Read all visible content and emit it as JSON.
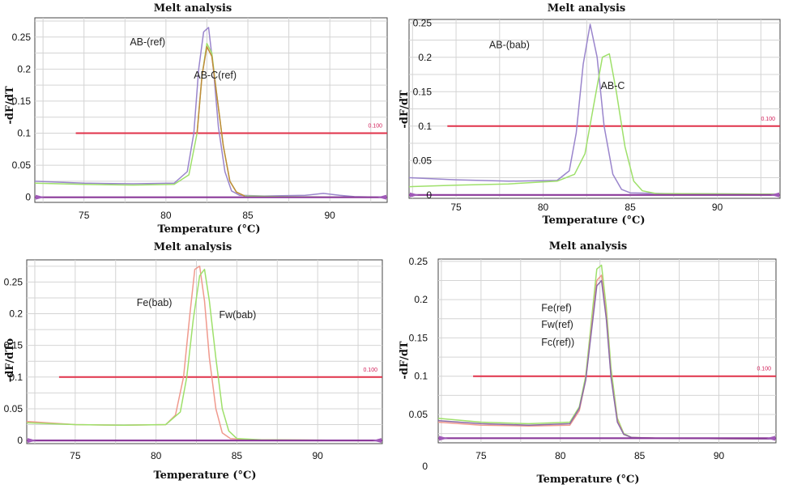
{
  "chart_data": [
    {
      "type": "line",
      "title": "Melt analysis",
      "xlabel": "Temperature (°C)",
      "ylabel": "-dF/dT",
      "xlim": [
        72,
        93.5
      ],
      "ylim": [
        -0.008,
        0.28
      ],
      "xticks": [
        "75",
        "80",
        "85",
        "90"
      ],
      "yticks": [
        "0",
        "0.05",
        "0.1",
        "0.15",
        "0.2",
        "0.25"
      ],
      "threshold": {
        "value": 0.1,
        "label": "0.100",
        "x_start": 74.5
      },
      "annotations": [
        {
          "text": "AB-(ref)",
          "x": 77.8,
          "y": 0.237
        },
        {
          "text": "AB-C(ref)",
          "x": 81.7,
          "y": 0.185
        }
      ],
      "series": [
        {
          "color": "#9a85cc",
          "x": [
            72,
            75,
            78,
            80.5,
            81.3,
            81.7,
            82.0,
            82.3,
            82.6,
            82.9,
            83.2,
            83.6,
            84.0,
            84.5,
            86,
            88.5,
            89.6,
            90.6,
            91.5,
            93.5
          ],
          "y": [
            0.025,
            0.022,
            0.021,
            0.022,
            0.04,
            0.1,
            0.2,
            0.258,
            0.265,
            0.2,
            0.11,
            0.04,
            0.01,
            0.003,
            0.002,
            0.003,
            0.006,
            0.003,
            0.001,
            0.0
          ]
        },
        {
          "color": "#9ee06a",
          "x": [
            72,
            75,
            78,
            80.5,
            81.4,
            81.9,
            82.2,
            82.5,
            82.8,
            83.1,
            83.5,
            83.9,
            84.3,
            84.8,
            87,
            93.5
          ],
          "y": [
            0.022,
            0.02,
            0.019,
            0.02,
            0.035,
            0.1,
            0.19,
            0.24,
            0.225,
            0.16,
            0.08,
            0.025,
            0.008,
            0.002,
            0.001,
            0.0
          ]
        },
        {
          "color": "#c08a3a",
          "x": [
            81.9,
            82.2,
            82.5,
            82.8,
            83.1,
            83.5,
            83.9,
            84.3,
            84.8
          ],
          "y": [
            0.1,
            0.19,
            0.235,
            0.22,
            0.16,
            0.08,
            0.025,
            0.008,
            0.002
          ]
        },
        {
          "color": "#8b3a9a",
          "x": [
            72,
            93.5
          ],
          "y": [
            0.0,
            0.0
          ]
        }
      ]
    },
    {
      "type": "line",
      "title": "Melt analysis",
      "xlabel": "Temperature (°C)",
      "ylabel": "-dF/dT",
      "xlim": [
        72.3,
        93.6
      ],
      "ylim": [
        -0.005,
        0.255
      ],
      "xticks": [
        "75",
        "80",
        "85",
        "90"
      ],
      "yticks": [
        "0",
        "0.05",
        "0.1",
        "0.15",
        "0.2",
        "0.25"
      ],
      "threshold": {
        "value": 0.1,
        "label": "0.100",
        "x_start": 74.5
      },
      "annotations": [
        {
          "text": "AB-(bab)",
          "x": 76.9,
          "y": 0.213
        },
        {
          "text": "AB-C",
          "x": 83.3,
          "y": 0.154
        }
      ],
      "series": [
        {
          "color": "#9a85cc",
          "x": [
            72.3,
            75,
            78,
            80.8,
            81.5,
            81.9,
            82.3,
            82.7,
            83.1,
            83.5,
            84.0,
            84.5,
            85,
            87,
            93.6
          ],
          "y": [
            0.025,
            0.022,
            0.02,
            0.021,
            0.035,
            0.09,
            0.19,
            0.248,
            0.2,
            0.1,
            0.03,
            0.008,
            0.003,
            0.002,
            0.001
          ]
        },
        {
          "color": "#9ee06a",
          "x": [
            72.3,
            75,
            78,
            80.8,
            81.8,
            82.4,
            82.9,
            83.4,
            83.8,
            84.2,
            84.7,
            85.2,
            85.7,
            86.5,
            93.6
          ],
          "y": [
            0.012,
            0.014,
            0.016,
            0.02,
            0.03,
            0.06,
            0.13,
            0.2,
            0.205,
            0.15,
            0.07,
            0.02,
            0.006,
            0.002,
            0.001
          ]
        },
        {
          "color": "#8b3a9a",
          "x": [
            72.3,
            93.6
          ],
          "y": [
            0.0,
            0.0
          ]
        }
      ]
    },
    {
      "type": "line",
      "title": "Melt analysis",
      "xlabel": "Temperature (°C)",
      "ylabel": "-dF/dTo",
      "xlim": [
        72,
        94
      ],
      "ylim": [
        -0.005,
        0.285
      ],
      "xticks": [
        "75",
        "80",
        "85",
        "90"
      ],
      "yticks": [
        "0",
        "0.05",
        "0.1",
        "0.15",
        "0.2",
        "0.25"
      ],
      "threshold": {
        "value": 0.1,
        "label": "0.100",
        "x_start": 74.0
      },
      "annotations": [
        {
          "text": "Fe(bab)",
          "x": 78.8,
          "y": 0.212
        },
        {
          "text": "Fw(bab)",
          "x": 83.9,
          "y": 0.193
        }
      ],
      "series": [
        {
          "color": "#f09a8e",
          "x": [
            72,
            75,
            78,
            80.6,
            81.2,
            81.7,
            82.1,
            82.4,
            82.7,
            83.0,
            83.3,
            83.7,
            84.1,
            84.6,
            86,
            94
          ],
          "y": [
            0.03,
            0.025,
            0.024,
            0.025,
            0.04,
            0.1,
            0.2,
            0.27,
            0.275,
            0.22,
            0.13,
            0.05,
            0.012,
            0.003,
            0.001,
            0.0
          ]
        },
        {
          "color": "#9ee06a",
          "x": [
            72,
            75,
            78,
            80.6,
            81.5,
            81.9,
            82.3,
            82.7,
            83.0,
            83.3,
            83.7,
            84.1,
            84.5,
            85.0,
            86.5,
            94
          ],
          "y": [
            0.028,
            0.025,
            0.024,
            0.025,
            0.045,
            0.1,
            0.19,
            0.26,
            0.27,
            0.22,
            0.13,
            0.05,
            0.015,
            0.003,
            0.001,
            0.0
          ]
        },
        {
          "color": "#8b3a9a",
          "x": [
            72,
            94
          ],
          "y": [
            0.0,
            0.0
          ]
        }
      ]
    },
    {
      "type": "line",
      "title": "Melt analysis",
      "xlabel": "Temperature (°C)",
      "ylabel": "-dF/dT",
      "xlim": [
        72.3,
        93.6
      ],
      "ylim": [
        0.013,
        0.253
      ],
      "xticks": [
        "75",
        "80",
        "85",
        "90"
      ],
      "yticks": [
        "0",
        "0.05",
        "0.1",
        "0.15",
        "0.2",
        "0.25"
      ],
      "threshold": {
        "value": 0.1,
        "label": "0.100",
        "x_start": 74.5
      },
      "annotations": [
        {
          "text": "Fe(ref)",
          "x": 78.8,
          "y": 0.185
        },
        {
          "text": "Fw(ref)",
          "x": 78.8,
          "y": 0.163
        },
        {
          "text": "Fc(ref))",
          "x": 78.8,
          "y": 0.14
        }
      ],
      "series": [
        {
          "color": "#9ee06a",
          "x": [
            72.3,
            75,
            78,
            80.6,
            81.2,
            81.6,
            82.0,
            82.3,
            82.6,
            82.9,
            83.2,
            83.6,
            84.0,
            84.5,
            86,
            93.6
          ],
          "y": [
            0.045,
            0.04,
            0.038,
            0.04,
            0.06,
            0.1,
            0.18,
            0.24,
            0.245,
            0.19,
            0.11,
            0.045,
            0.025,
            0.02,
            0.019,
            0.018
          ]
        },
        {
          "color": "#f09a8e",
          "x": [
            72.3,
            75,
            78,
            80.6,
            81.2,
            81.6,
            82.0,
            82.3,
            82.6,
            82.9,
            83.2,
            83.6,
            84.0,
            84.5,
            86,
            93.6
          ],
          "y": [
            0.04,
            0.036,
            0.035,
            0.036,
            0.055,
            0.095,
            0.17,
            0.225,
            0.232,
            0.18,
            0.1,
            0.042,
            0.024,
            0.02,
            0.019,
            0.018
          ]
        },
        {
          "color": "#8a6aa8",
          "x": [
            72.3,
            75,
            78,
            80.6,
            81.2,
            81.6,
            82.0,
            82.3,
            82.6,
            82.9,
            83.2,
            83.6,
            84.0,
            84.5,
            86,
            93.6
          ],
          "y": [
            0.042,
            0.038,
            0.036,
            0.038,
            0.058,
            0.095,
            0.165,
            0.218,
            0.225,
            0.175,
            0.098,
            0.04,
            0.024,
            0.02,
            0.019,
            0.018
          ]
        },
        {
          "color": "#8b3a9a",
          "x": [
            72.3,
            93.6
          ],
          "y": [
            0.019,
            0.019
          ]
        }
      ]
    }
  ]
}
